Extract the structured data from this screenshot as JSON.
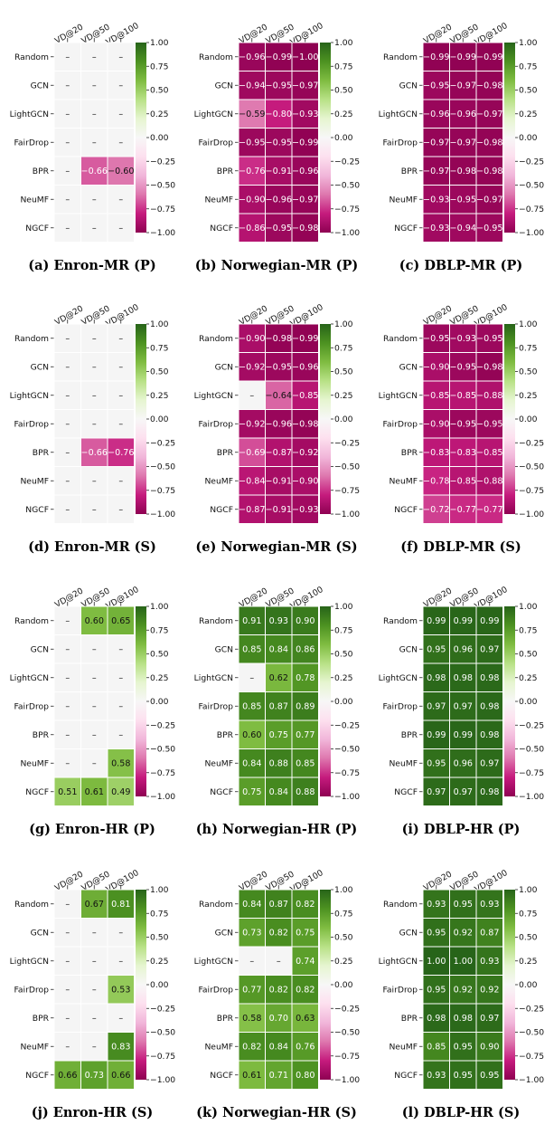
{
  "chart_data": [
    {
      "type": "heatmap",
      "caption": "(a) Enron-MR (P)",
      "columns": [
        "VD@20",
        "VD@50",
        "VD@100"
      ],
      "rows": [
        "Random",
        "GCN",
        "LightGCN",
        "FairDrop",
        "BPR",
        "NeuMF",
        "NGCF"
      ],
      "values": [
        [
          null,
          null,
          null
        ],
        [
          null,
          null,
          null
        ],
        [
          null,
          null,
          null
        ],
        [
          null,
          null,
          null
        ],
        [
          null,
          -0.66,
          -0.6
        ],
        [
          null,
          null,
          null
        ],
        [
          null,
          null,
          null
        ]
      ]
    },
    {
      "type": "heatmap",
      "caption": "(b) Norwegian-MR (P)",
      "columns": [
        "VD@20",
        "VD@50",
        "VD@100"
      ],
      "rows": [
        "Random",
        "GCN",
        "LightGCN",
        "FairDrop",
        "BPR",
        "NeuMF",
        "NGCF"
      ],
      "values": [
        [
          -0.96,
          -0.99,
          -1.0
        ],
        [
          -0.94,
          -0.95,
          -0.97
        ],
        [
          -0.59,
          -0.8,
          -0.93
        ],
        [
          -0.95,
          -0.95,
          -0.99
        ],
        [
          -0.76,
          -0.91,
          -0.96
        ],
        [
          -0.9,
          -0.96,
          -0.97
        ],
        [
          -0.86,
          -0.95,
          -0.98
        ]
      ]
    },
    {
      "type": "heatmap",
      "caption": "(c) DBLP-MR (P)",
      "columns": [
        "VD@20",
        "VD@50",
        "VD@100"
      ],
      "rows": [
        "Random",
        "GCN",
        "LightGCN",
        "FairDrop",
        "BPR",
        "NeuMF",
        "NGCF"
      ],
      "values": [
        [
          -0.99,
          -0.99,
          -0.99
        ],
        [
          -0.95,
          -0.97,
          -0.98
        ],
        [
          -0.96,
          -0.96,
          -0.97
        ],
        [
          -0.97,
          -0.97,
          -0.98
        ],
        [
          -0.97,
          -0.98,
          -0.98
        ],
        [
          -0.93,
          -0.95,
          -0.97
        ],
        [
          -0.93,
          -0.94,
          -0.95
        ]
      ]
    },
    {
      "type": "heatmap",
      "caption": "(d) Enron-MR (S)",
      "columns": [
        "VD@20",
        "VD@50",
        "VD@100"
      ],
      "rows": [
        "Random",
        "GCN",
        "LightGCN",
        "FairDrop",
        "BPR",
        "NeuMF",
        "NGCF"
      ],
      "values": [
        [
          null,
          null,
          null
        ],
        [
          null,
          null,
          null
        ],
        [
          null,
          null,
          null
        ],
        [
          null,
          null,
          null
        ],
        [
          null,
          -0.66,
          -0.76
        ],
        [
          null,
          null,
          null
        ],
        [
          null,
          null,
          null
        ]
      ]
    },
    {
      "type": "heatmap",
      "caption": "(e) Norwegian-MR (S)",
      "columns": [
        "VD@20",
        "VD@50",
        "VD@100"
      ],
      "rows": [
        "Random",
        "GCN",
        "LightGCN",
        "FairDrop",
        "BPR",
        "NeuMF",
        "NGCF"
      ],
      "values": [
        [
          -0.9,
          -0.98,
          -0.99
        ],
        [
          -0.92,
          -0.95,
          -0.96
        ],
        [
          null,
          -0.64,
          -0.85
        ],
        [
          -0.92,
          -0.96,
          -0.98
        ],
        [
          -0.69,
          -0.87,
          -0.92
        ],
        [
          -0.84,
          -0.91,
          -0.9
        ],
        [
          -0.87,
          -0.91,
          -0.93
        ]
      ]
    },
    {
      "type": "heatmap",
      "caption": "(f) DBLP-MR (S)",
      "columns": [
        "VD@20",
        "VD@50",
        "VD@100"
      ],
      "rows": [
        "Random",
        "GCN",
        "LightGCN",
        "FairDrop",
        "BPR",
        "NeuMF",
        "NGCF"
      ],
      "values": [
        [
          -0.95,
          -0.93,
          -0.95
        ],
        [
          -0.9,
          -0.95,
          -0.98
        ],
        [
          -0.85,
          -0.85,
          -0.88
        ],
        [
          -0.9,
          -0.95,
          -0.95
        ],
        [
          -0.83,
          -0.83,
          -0.85
        ],
        [
          -0.78,
          -0.85,
          -0.88
        ],
        [
          -0.72,
          -0.77,
          -0.77
        ]
      ]
    },
    {
      "type": "heatmap",
      "caption": "(g) Enron-HR (P)",
      "columns": [
        "VD@20",
        "VD@50",
        "VD@100"
      ],
      "rows": [
        "Random",
        "GCN",
        "LightGCN",
        "FairDrop",
        "BPR",
        "NeuMF",
        "NGCF"
      ],
      "values": [
        [
          null,
          0.6,
          0.65
        ],
        [
          null,
          null,
          null
        ],
        [
          null,
          null,
          null
        ],
        [
          null,
          null,
          null
        ],
        [
          null,
          null,
          null
        ],
        [
          null,
          null,
          0.58
        ],
        [
          0.51,
          0.61,
          0.49
        ]
      ]
    },
    {
      "type": "heatmap",
      "caption": "(h) Norwegian-HR (P)",
      "columns": [
        "VD@20",
        "VD@50",
        "VD@100"
      ],
      "rows": [
        "Random",
        "GCN",
        "LightGCN",
        "FairDrop",
        "BPR",
        "NeuMF",
        "NGCF"
      ],
      "values": [
        [
          0.91,
          0.93,
          0.9
        ],
        [
          0.85,
          0.84,
          0.86
        ],
        [
          null,
          0.62,
          0.78
        ],
        [
          0.85,
          0.87,
          0.89
        ],
        [
          0.6,
          0.75,
          0.77
        ],
        [
          0.84,
          0.88,
          0.85
        ],
        [
          0.75,
          0.84,
          0.88
        ]
      ]
    },
    {
      "type": "heatmap",
      "caption": "(i) DBLP-HR (P)",
      "columns": [
        "VD@20",
        "VD@50",
        "VD@100"
      ],
      "rows": [
        "Random",
        "GCN",
        "LightGCN",
        "FairDrop",
        "BPR",
        "NeuMF",
        "NGCF"
      ],
      "values": [
        [
          0.99,
          0.99,
          0.99
        ],
        [
          0.95,
          0.96,
          0.97
        ],
        [
          0.98,
          0.98,
          0.98
        ],
        [
          0.97,
          0.97,
          0.98
        ],
        [
          0.99,
          0.99,
          0.98
        ],
        [
          0.95,
          0.96,
          0.97
        ],
        [
          0.97,
          0.97,
          0.98
        ]
      ]
    },
    {
      "type": "heatmap",
      "caption": "(j) Enron-HR (S)",
      "columns": [
        "VD@20",
        "VD@50",
        "VD@100"
      ],
      "rows": [
        "Random",
        "GCN",
        "LightGCN",
        "FairDrop",
        "BPR",
        "NeuMF",
        "NGCF"
      ],
      "values": [
        [
          null,
          0.67,
          0.81
        ],
        [
          null,
          null,
          null
        ],
        [
          null,
          null,
          null
        ],
        [
          null,
          null,
          0.53
        ],
        [
          null,
          null,
          null
        ],
        [
          null,
          null,
          0.83
        ],
        [
          0.66,
          0.73,
          0.66
        ]
      ]
    },
    {
      "type": "heatmap",
      "caption": "(k) Norwegian-HR (S)",
      "columns": [
        "VD@20",
        "VD@50",
        "VD@100"
      ],
      "rows": [
        "Random",
        "GCN",
        "LightGCN",
        "FairDrop",
        "BPR",
        "NeuMF",
        "NGCF"
      ],
      "values": [
        [
          0.84,
          0.87,
          0.82
        ],
        [
          0.73,
          0.82,
          0.75
        ],
        [
          null,
          null,
          0.74
        ],
        [
          0.77,
          0.82,
          0.82
        ],
        [
          0.58,
          0.7,
          0.63
        ],
        [
          0.82,
          0.84,
          0.76
        ],
        [
          0.61,
          0.71,
          0.8
        ]
      ]
    },
    {
      "type": "heatmap",
      "caption": "(l) DBLP-HR (S)",
      "columns": [
        "VD@20",
        "VD@50",
        "VD@100"
      ],
      "rows": [
        "Random",
        "GCN",
        "LightGCN",
        "FairDrop",
        "BPR",
        "NeuMF",
        "NGCF"
      ],
      "values": [
        [
          0.93,
          0.95,
          0.93
        ],
        [
          0.95,
          0.92,
          0.87
        ],
        [
          1.0,
          1.0,
          0.93
        ],
        [
          0.95,
          0.92,
          0.92
        ],
        [
          0.98,
          0.98,
          0.97
        ],
        [
          0.85,
          0.95,
          0.9
        ],
        [
          0.93,
          0.95,
          0.95
        ]
      ]
    }
  ],
  "missing_label": "–",
  "colorbar": {
    "ticks": [
      "1.00",
      "0.75",
      "0.50",
      "0.25",
      "0.00",
      "−0.25",
      "−0.50",
      "−0.75",
      "−1.00"
    ],
    "vmin": -1,
    "vmax": 1,
    "colormap": "PiYG",
    "colors": [
      "#8e0152",
      "#c51b7d",
      "#de77ae",
      "#f1b6da",
      "#fde0ef",
      "#f7f7f7",
      "#e6f5d0",
      "#b8e186",
      "#7fbc41",
      "#4d9221",
      "#276419"
    ]
  },
  "missing_color": "#f5f5f5"
}
